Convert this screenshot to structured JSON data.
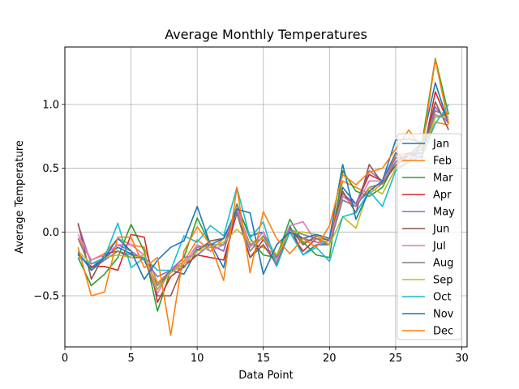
{
  "chart_data": {
    "type": "line",
    "title": "Average Monthly Temperatures",
    "xlabel": "Data Point",
    "ylabel": "Average Temperature",
    "xlim": [
      0,
      30.4
    ],
    "ylim": [
      -0.9,
      1.45
    ],
    "xticks": [
      0,
      5,
      10,
      15,
      20,
      25,
      30
    ],
    "yticks": [
      -0.5,
      0.0,
      0.5,
      1.0
    ],
    "ytick_labels": [
      "−0.5",
      "0.0",
      "0.5",
      "1.0"
    ],
    "grid": true,
    "legend_position": "right",
    "x": [
      1,
      2,
      3,
      4,
      5,
      6,
      7,
      8,
      9,
      10,
      11,
      12,
      13,
      14,
      15,
      16,
      17,
      18,
      19,
      20,
      21,
      22,
      23,
      24,
      25,
      26,
      27,
      28,
      29
    ],
    "series": [
      {
        "name": "Jan",
        "color": "#1f77b4",
        "values": [
          -0.17,
          -0.28,
          -0.2,
          -0.12,
          -0.17,
          -0.22,
          -0.45,
          -0.3,
          -0.33,
          -0.14,
          -0.09,
          -0.28,
          0.2,
          -0.03,
          0.0,
          -0.2,
          0.05,
          -0.18,
          -0.1,
          -0.1,
          0.35,
          0.22,
          0.32,
          0.4,
          0.62,
          0.55,
          0.7,
          0.9,
          0.93
        ]
      },
      {
        "name": "Feb",
        "color": "#ff7f0e",
        "values": [
          -0.05,
          -0.22,
          -0.17,
          -0.05,
          -0.1,
          -0.12,
          -0.4,
          -0.3,
          -0.23,
          -0.06,
          -0.15,
          -0.05,
          0.18,
          -0.1,
          -0.12,
          -0.18,
          0.03,
          -0.08,
          -0.05,
          -0.06,
          0.4,
          0.35,
          0.3,
          0.38,
          0.6,
          0.62,
          0.62,
          0.86,
          0.84
        ]
      },
      {
        "name": "Mar",
        "color": "#2ca02c",
        "values": [
          -0.2,
          -0.42,
          -0.33,
          -0.2,
          0.06,
          -0.15,
          -0.62,
          -0.3,
          -0.2,
          0.11,
          -0.1,
          -0.15,
          0.22,
          -0.05,
          -0.18,
          -0.2,
          0.1,
          -0.08,
          -0.18,
          -0.2,
          0.48,
          0.32,
          0.28,
          0.35,
          0.55,
          0.6,
          0.7,
          1.36,
          0.92
        ]
      },
      {
        "name": "Apr",
        "color": "#d62728",
        "values": [
          -0.18,
          -0.27,
          -0.27,
          -0.3,
          -0.02,
          -0.04,
          -0.55,
          -0.35,
          -0.27,
          -0.18,
          -0.2,
          -0.22,
          0.15,
          -0.2,
          -0.06,
          -0.18,
          0.0,
          -0.15,
          -0.05,
          -0.1,
          0.28,
          0.22,
          0.45,
          0.4,
          0.55,
          0.62,
          0.58,
          1.1,
          0.85
        ]
      },
      {
        "name": "May",
        "color": "#9467bd",
        "values": [
          0.06,
          -0.25,
          -0.22,
          -0.1,
          -0.15,
          -0.22,
          -0.35,
          -0.3,
          -0.2,
          -0.18,
          -0.1,
          -0.15,
          0.18,
          -0.1,
          -0.05,
          -0.27,
          0.02,
          -0.05,
          -0.08,
          -0.1,
          0.3,
          0.22,
          0.48,
          0.4,
          0.58,
          0.6,
          0.65,
          0.98,
          0.85
        ]
      },
      {
        "name": "Jun",
        "color": "#8c564b",
        "values": [
          0.07,
          -0.37,
          -0.17,
          -0.15,
          -0.2,
          -0.2,
          -0.5,
          -0.5,
          -0.25,
          -0.15,
          -0.07,
          -0.05,
          0.15,
          -0.2,
          -0.1,
          -0.25,
          0.03,
          -0.1,
          -0.03,
          -0.07,
          0.32,
          0.15,
          0.53,
          0.38,
          0.52,
          0.6,
          0.62,
          1.02,
          0.8
        ]
      },
      {
        "name": "Jul",
        "color": "#e377c2",
        "values": [
          -0.02,
          -0.22,
          -0.18,
          -0.1,
          -0.1,
          -0.18,
          -0.48,
          -0.3,
          -0.25,
          -0.1,
          -0.15,
          -0.1,
          0.2,
          -0.12,
          0.0,
          -0.23,
          0.05,
          0.08,
          -0.08,
          -0.07,
          0.28,
          0.2,
          0.4,
          0.4,
          0.55,
          0.58,
          0.6,
          0.92,
          0.88
        ]
      },
      {
        "name": "Aug",
        "color": "#7f7f7f",
        "values": [
          -0.05,
          -0.3,
          -0.22,
          -0.15,
          -0.18,
          -0.2,
          -0.42,
          -0.3,
          -0.28,
          -0.12,
          -0.1,
          -0.1,
          0.15,
          -0.15,
          -0.03,
          -0.2,
          0.02,
          -0.02,
          -0.05,
          -0.1,
          0.25,
          0.2,
          0.35,
          0.38,
          0.55,
          0.55,
          0.6,
          0.95,
          0.9
        ]
      },
      {
        "name": "Sep",
        "color": "#bcbd22",
        "values": [
          -0.15,
          -0.25,
          -0.2,
          -0.18,
          -0.2,
          -0.18,
          -0.45,
          -0.32,
          -0.25,
          -0.15,
          -0.12,
          -0.08,
          0.02,
          -0.08,
          -0.05,
          -0.18,
          0.0,
          0.0,
          -0.02,
          -0.1,
          0.12,
          0.03,
          0.35,
          0.3,
          0.5,
          0.55,
          0.6,
          0.9,
          0.9
        ]
      },
      {
        "name": "Oct",
        "color": "#17becf",
        "values": [
          -0.2,
          -0.25,
          -0.2,
          0.07,
          -0.28,
          -0.2,
          -0.3,
          -0.3,
          -0.03,
          -0.08,
          0.05,
          -0.03,
          0.35,
          -0.05,
          0.08,
          -0.27,
          0.0,
          -0.18,
          -0.12,
          -0.23,
          0.12,
          0.15,
          0.32,
          0.2,
          0.48,
          0.55,
          0.6,
          0.85,
          1.0
        ]
      },
      {
        "name": "Nov",
        "color": "#1f77b4",
        "values": [
          -0.16,
          -0.3,
          -0.2,
          -0.05,
          -0.15,
          -0.37,
          -0.22,
          -0.12,
          -0.07,
          0.2,
          -0.1,
          -0.05,
          0.18,
          0.15,
          -0.33,
          -0.1,
          0.0,
          -0.05,
          -0.02,
          -0.05,
          0.53,
          0.1,
          0.32,
          0.4,
          0.72,
          0.73,
          0.7,
          1.17,
          0.85
        ]
      },
      {
        "name": "Dec",
        "color": "#ff7f0e",
        "values": [
          -0.12,
          -0.5,
          -0.47,
          -0.04,
          -0.04,
          -0.28,
          -0.2,
          -0.81,
          -0.15,
          0.04,
          -0.1,
          -0.38,
          0.35,
          -0.32,
          0.16,
          -0.05,
          -0.17,
          -0.05,
          -0.12,
          0.05,
          0.45,
          0.37,
          0.47,
          0.5,
          0.65,
          0.8,
          0.65,
          1.35,
          0.85
        ]
      }
    ]
  }
}
